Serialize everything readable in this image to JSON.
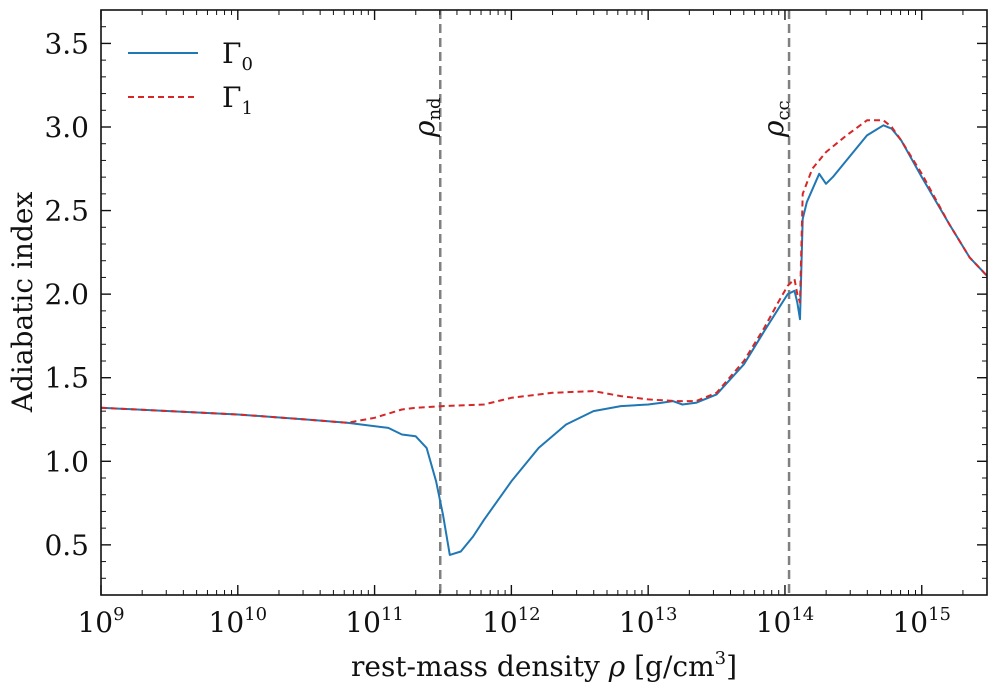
{
  "chart_data": {
    "type": "line",
    "xscale": "log",
    "xlim_log10": [
      9,
      15.477
    ],
    "ylim": [
      0.2,
      3.7
    ],
    "xlabel_prefix": "rest-mass density ",
    "xlabel_symbol": "ρ",
    "xlabel_unit": " [g/cm",
    "xlabel_unit_exp": "3",
    "xlabel_unit_close": "]",
    "ylabel": "Adiabatic index",
    "x_ticks": [
      {
        "log10": 9,
        "base": "10",
        "exp": "9"
      },
      {
        "log10": 10,
        "base": "10",
        "exp": "10"
      },
      {
        "log10": 11,
        "base": "10",
        "exp": "11"
      },
      {
        "log10": 12,
        "base": "10",
        "exp": "12"
      },
      {
        "log10": 13,
        "base": "10",
        "exp": "13"
      },
      {
        "log10": 14,
        "base": "10",
        "exp": "14"
      },
      {
        "log10": 15,
        "base": "10",
        "exp": "15"
      }
    ],
    "y_ticks": [
      {
        "value": 0.5,
        "label": "0.5"
      },
      {
        "value": 1.0,
        "label": "1.0"
      },
      {
        "value": 1.5,
        "label": "1.5"
      },
      {
        "value": 2.0,
        "label": "2.0"
      },
      {
        "value": 2.5,
        "label": "2.5"
      },
      {
        "value": 3.0,
        "label": "3.0"
      },
      {
        "value": 3.5,
        "label": "3.5"
      }
    ],
    "legend": {
      "position": "top-left",
      "entries": [
        {
          "symbol": "Γ",
          "sub": "0",
          "color": "#1f77b4",
          "style": "solid"
        },
        {
          "symbol": "Γ",
          "sub": "1",
          "color": "#d62728",
          "style": "dashed"
        }
      ]
    },
    "vlines": [
      {
        "log10": 11.48,
        "symbol": "ρ",
        "sub": "nd",
        "color": "#808080",
        "style": "dashed"
      },
      {
        "log10": 14.03,
        "symbol": "ρ",
        "sub": "cc",
        "color": "#808080",
        "style": "dashed"
      }
    ],
    "series": [
      {
        "name": "Γ0",
        "color": "#1f77b4",
        "style": "solid",
        "log10_rho": [
          9.0,
          9.5,
          10.0,
          10.5,
          10.8,
          11.1,
          11.2,
          11.3,
          11.38,
          11.45,
          11.5,
          11.55,
          11.63,
          11.72,
          11.8,
          12.0,
          12.2,
          12.4,
          12.6,
          12.8,
          13.0,
          13.1,
          13.18,
          13.25,
          13.35,
          13.5,
          13.7,
          13.85,
          13.95,
          14.02,
          14.07,
          14.09,
          14.11,
          14.13,
          14.16,
          14.25,
          14.3,
          14.35,
          14.45,
          14.6,
          14.72,
          14.78,
          14.85,
          15.0,
          15.2,
          15.35,
          15.477
        ],
        "values": [
          1.32,
          1.3,
          1.28,
          1.25,
          1.23,
          1.2,
          1.16,
          1.15,
          1.08,
          0.88,
          0.68,
          0.44,
          0.46,
          0.55,
          0.65,
          0.88,
          1.08,
          1.22,
          1.3,
          1.33,
          1.34,
          1.35,
          1.36,
          1.34,
          1.35,
          1.4,
          1.58,
          1.78,
          1.91,
          2.0,
          2.02,
          1.95,
          1.85,
          2.45,
          2.55,
          2.72,
          2.66,
          2.7,
          2.8,
          2.95,
          3.01,
          2.99,
          2.92,
          2.7,
          2.42,
          2.22,
          2.11
        ]
      },
      {
        "name": "Γ1",
        "color": "#d62728",
        "style": "dashed",
        "log10_rho": [
          9.0,
          9.5,
          10.0,
          10.5,
          10.8,
          11.0,
          11.2,
          11.3,
          11.5,
          11.8,
          12.0,
          12.3,
          12.6,
          12.8,
          13.0,
          13.2,
          13.35,
          13.5,
          13.7,
          13.85,
          13.95,
          14.02,
          14.07,
          14.09,
          14.11,
          14.13,
          14.2,
          14.3,
          14.45,
          14.6,
          14.72,
          14.78,
          14.85,
          15.0,
          15.2,
          15.35,
          15.477
        ],
        "values": [
          1.32,
          1.3,
          1.28,
          1.25,
          1.23,
          1.26,
          1.31,
          1.32,
          1.33,
          1.34,
          1.38,
          1.41,
          1.42,
          1.39,
          1.37,
          1.36,
          1.36,
          1.41,
          1.6,
          1.8,
          1.95,
          2.05,
          2.09,
          2.0,
          1.95,
          2.6,
          2.75,
          2.85,
          2.95,
          3.04,
          3.04,
          3.0,
          2.92,
          2.72,
          2.42,
          2.22,
          2.11
        ]
      }
    ]
  }
}
